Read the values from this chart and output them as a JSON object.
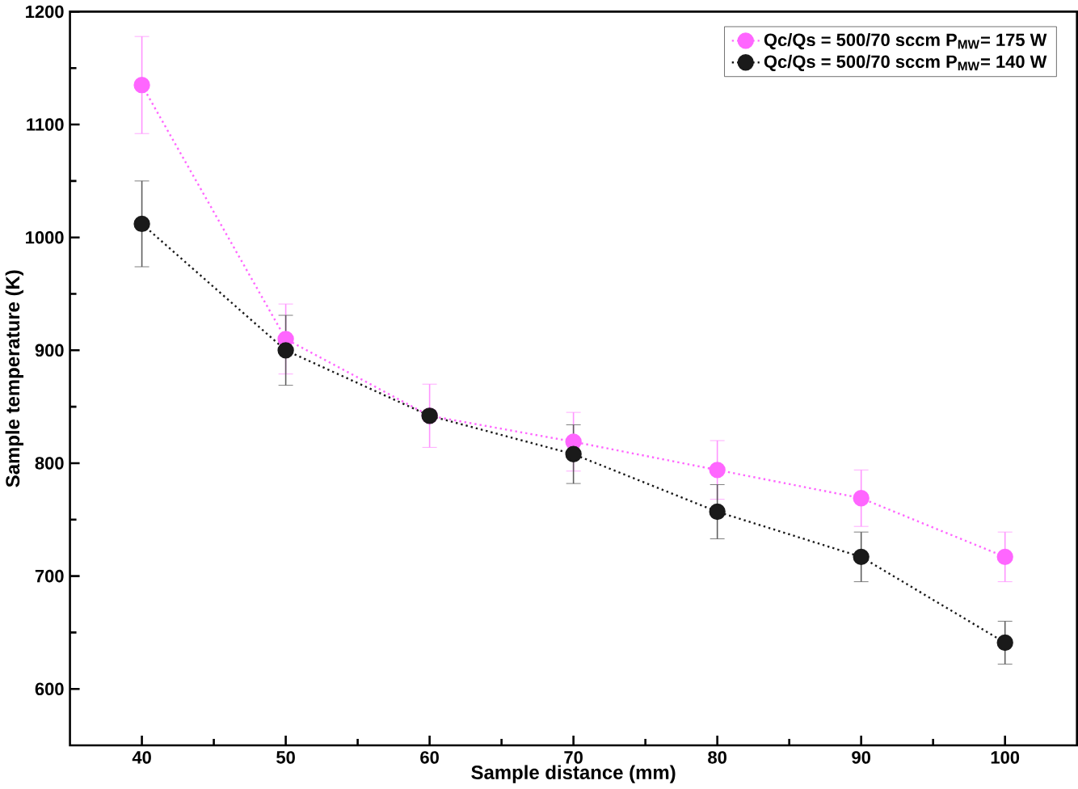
{
  "chart_data": {
    "type": "line",
    "xlabel": "Sample distance (mm)",
    "ylabel": "Sample temperature (K)",
    "x": [
      40,
      50,
      60,
      70,
      80,
      90,
      100
    ],
    "series": [
      {
        "name": "Qc/Qs = 500/70 sccm P$_{MW}$= 175 W",
        "color": "#ff66ff",
        "values": [
          1135,
          910,
          842,
          819,
          794,
          769,
          717
        ],
        "errors": [
          43,
          31,
          28,
          26,
          26,
          25,
          22
        ]
      },
      {
        "name": "Qc/Qs = 500/70 sccm P$_{MW}$= 140 W",
        "color": "#1a1a1a",
        "values": [
          1012,
          900,
          842,
          808,
          757,
          717,
          641
        ],
        "errors": [
          38,
          31,
          null,
          26,
          24,
          22,
          19
        ]
      }
    ],
    "xlim": [
      35,
      105
    ],
    "xticks": [
      40,
      50,
      60,
      70,
      80,
      90,
      100
    ],
    "ylim": [
      550,
      1200
    ],
    "yticks": [
      600,
      700,
      800,
      900,
      1000,
      1100,
      1200
    ],
    "legend": "top right",
    "grid": false,
    "marker": "circle",
    "line_style": "dotted"
  }
}
